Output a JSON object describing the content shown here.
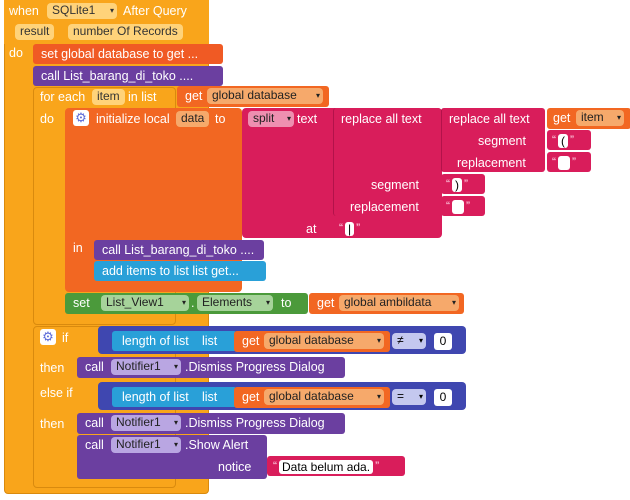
{
  "event": {
    "when": "when",
    "component": "SQLite1",
    "event_name": "After Query",
    "params": [
      "result",
      "number Of Records"
    ],
    "do": "do"
  },
  "stmt1": {
    "text": "set global database to  get ..."
  },
  "stmt2": {
    "text": "call  List_barang_di_toko ...."
  },
  "foreach": {
    "label": "for each",
    "var": "item",
    "in_list": "in list",
    "get": "get",
    "value": "global database",
    "do": "do"
  },
  "init_local": {
    "label": "initialize local",
    "var": "data",
    "to": "to",
    "in": "in"
  },
  "split": {
    "label": "split",
    "text": "text",
    "segment": "segment",
    "replacement": "replacement",
    "at": "at"
  },
  "replace_outer": {
    "label": "replace all text",
    "segment_value": ")",
    "replacement_value": ""
  },
  "replace_inner": {
    "label": "replace all text",
    "get": "get",
    "var": "item",
    "segment": "segment",
    "replacement": "replacement",
    "segment_value": "(",
    "replacement_value": ""
  },
  "at_value": "|",
  "quote_open": "“",
  "quote_close": "”",
  "in_stmt1": "call  List_barang_di_toko ....",
  "in_stmt2": "add items to list  list get...",
  "set_elements": {
    "set": "set",
    "component": "List_View1",
    "property": "Elements",
    "to": "to",
    "get": "get",
    "value": "global ambildata"
  },
  "if_block": {
    "if": "if",
    "then": "then",
    "else_if": "else if",
    "length_label": "length of list",
    "list_label": "list",
    "get": "get",
    "value": "global database",
    "op1": "≠",
    "num1": "0",
    "op2": "=",
    "num2": "0",
    "call": "call",
    "component": "Notifier1",
    "dismiss": ".Dismiss Progress Dialog",
    "show_alert": ".Show Alert",
    "notice": "notice",
    "message": "Data belum ada."
  },
  "colors": {
    "event": "#f9a51b",
    "set_global": "#f05a24",
    "procedure": "#6b3fa0",
    "control": "#f9a51b",
    "variable": "#f26722",
    "text": "#d91d5b",
    "list": "#29a0d8",
    "component_set": "#4b9a3b",
    "math": "#3f47b0"
  }
}
